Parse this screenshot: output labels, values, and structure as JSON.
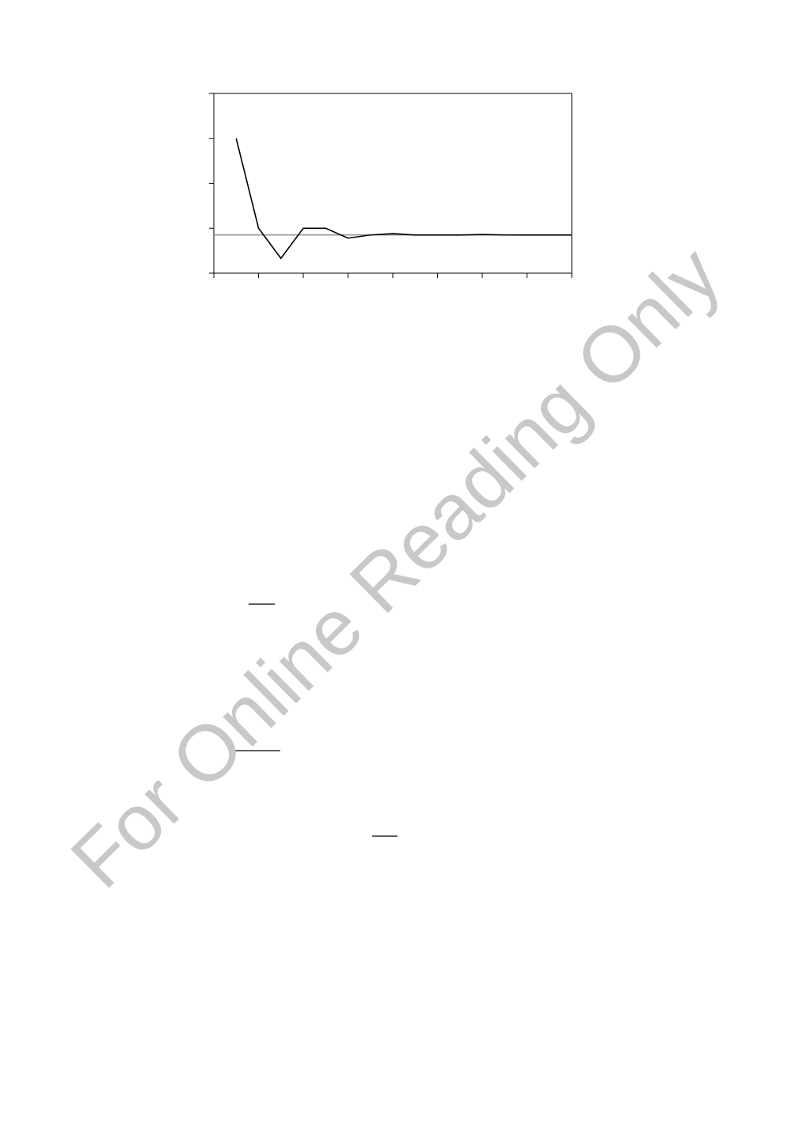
{
  "chart_data": {
    "type": "line",
    "x": [
      0.5,
      1,
      1.5,
      2,
      2.5,
      3,
      3.5,
      4,
      4.5,
      5,
      5.5,
      6,
      6.5,
      7,
      7.5,
      8
    ],
    "series": [
      {
        "color": "#000000",
        "values": [
          3,
          1,
          0.33,
          1,
          1,
          0.78,
          0.85,
          0.88,
          0.85,
          0.85,
          0.85,
          0.86,
          0.85,
          0.85,
          0.85,
          0.85
        ]
      }
    ],
    "reference_line": {
      "value": 0.85,
      "color": "#808080"
    },
    "xlim": [
      0,
      8
    ],
    "xticks": [
      0,
      1,
      2,
      3,
      4,
      5,
      6,
      7,
      8
    ],
    "ylim": [
      0,
      4
    ],
    "yticks": [
      0,
      1,
      2,
      3,
      4
    ]
  },
  "watermark": "For Online Reading Only"
}
